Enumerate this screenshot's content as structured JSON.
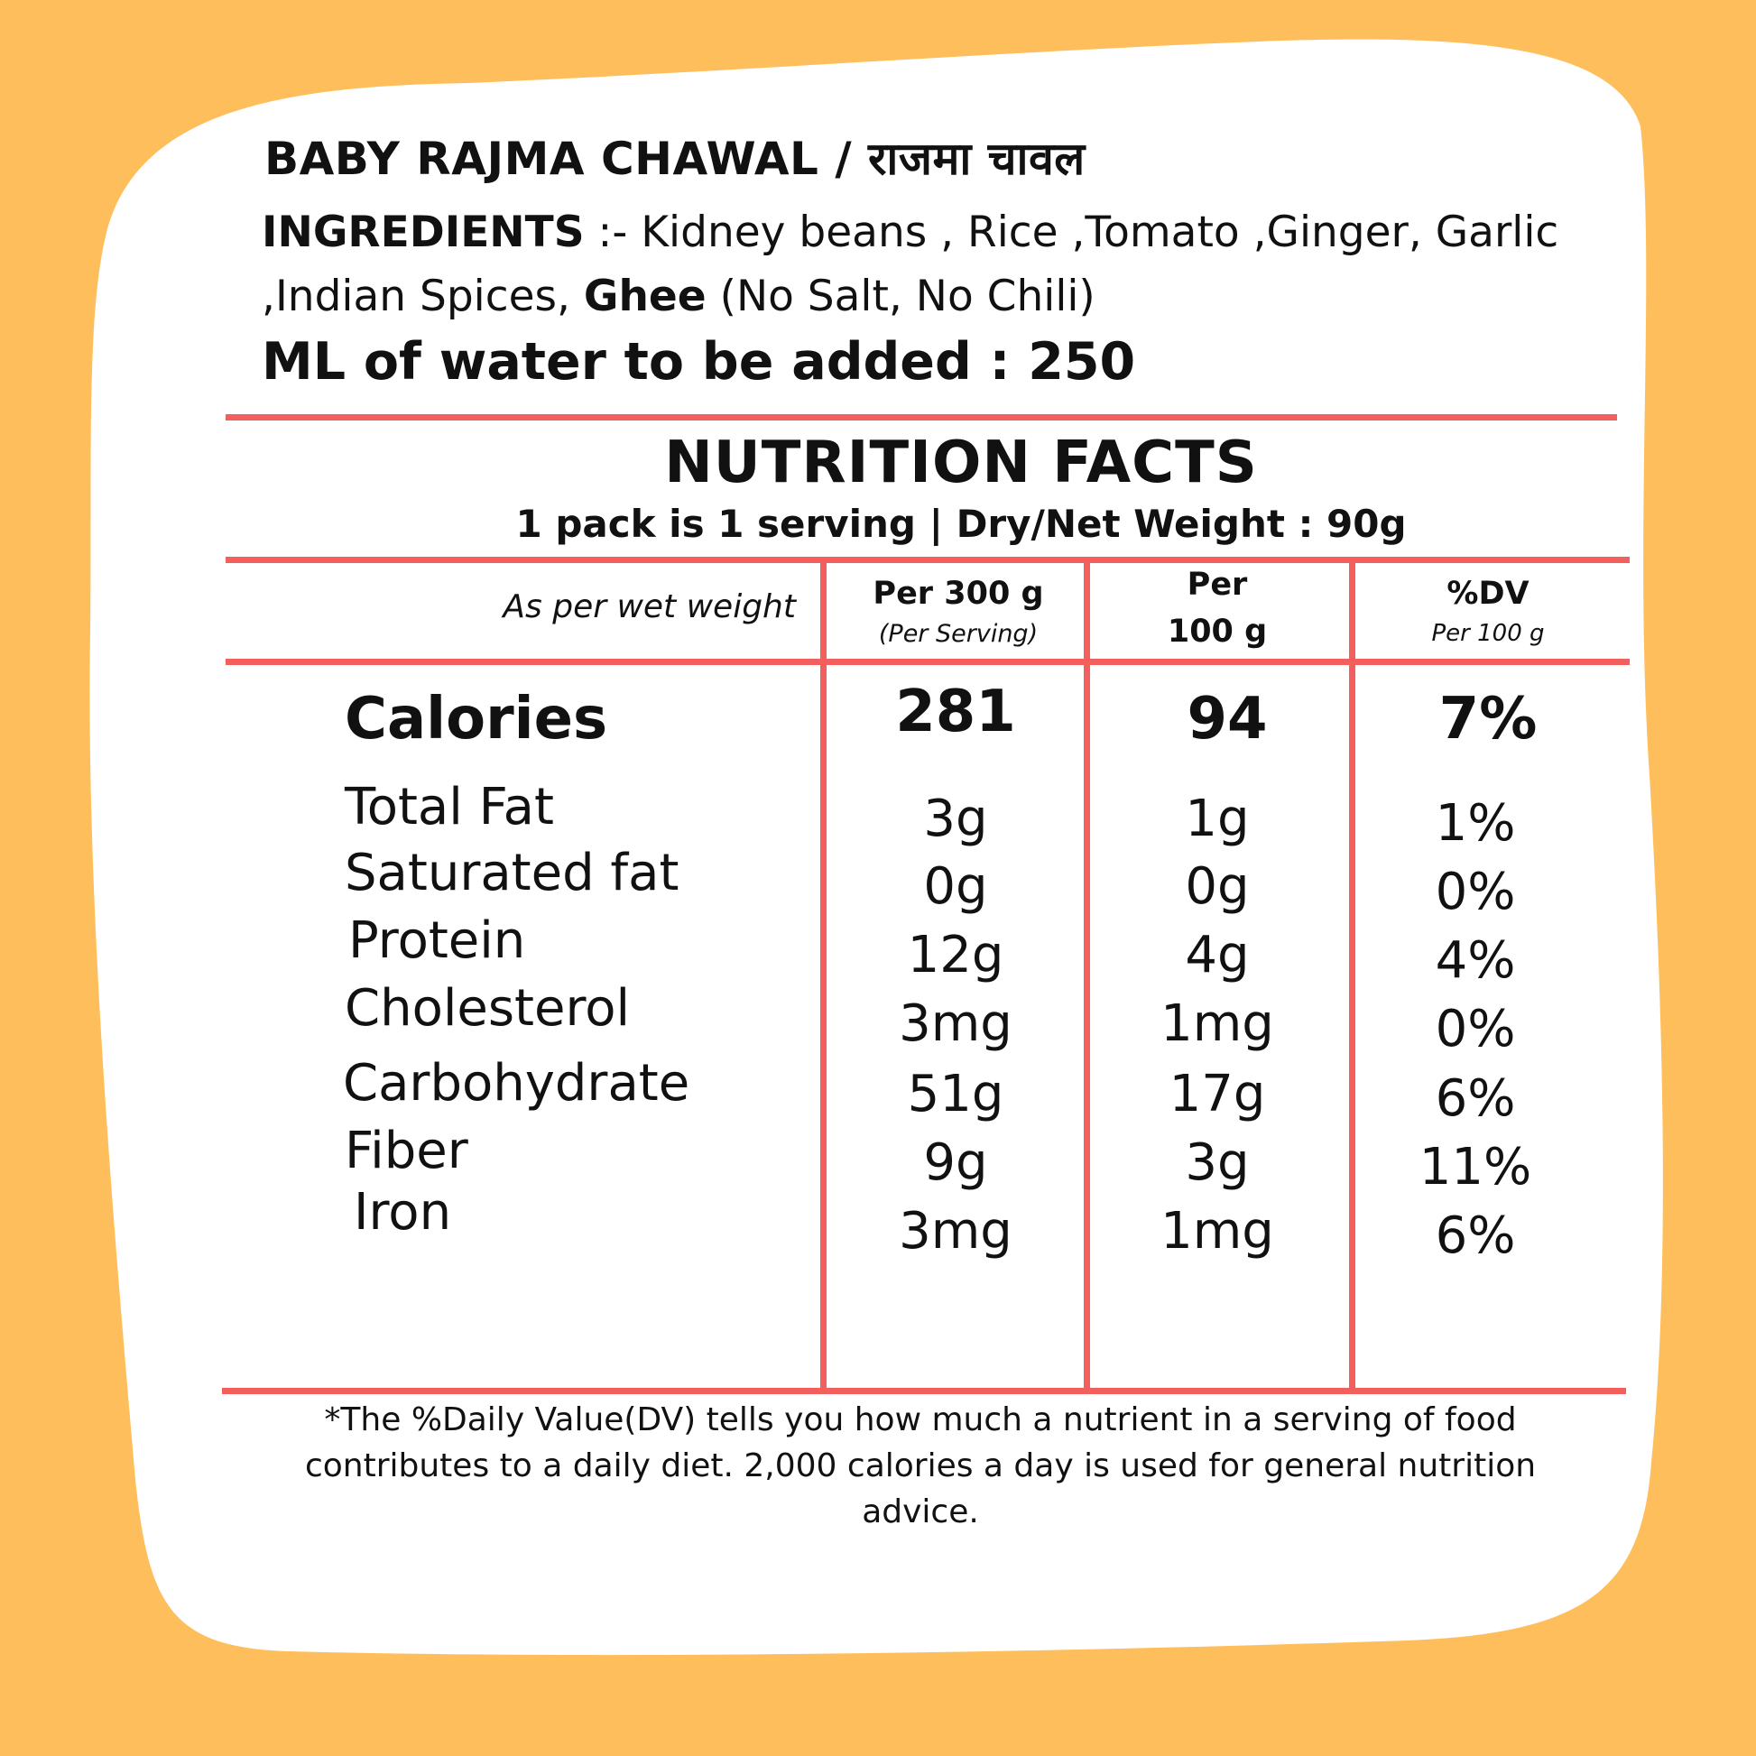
{
  "label": {
    "title": "BABY RAJMA CHAWAL / राजमा चावल",
    "ingredients": {
      "heading": "INGREDIENTS",
      "text_part1": " :- Kidney beans , Rice ,Tomato ,Ginger, Garlic ,Indian Spices, ",
      "bold_item": "Ghee",
      "text_part2": " (No Salt, No Chili)"
    },
    "water": "ML of water to be added : 250",
    "nutrition_title": "NUTRITION FACTS",
    "serving_info": "1 pack is 1 serving | Dry/Net  Weight : 90g"
  },
  "table": {
    "note": "As per wet weight",
    "columns": [
      {
        "line1": "Per 300 g",
        "line2": "(Per Serving)"
      },
      {
        "line1": "Per",
        "line2": "100 g"
      },
      {
        "line1": "%DV",
        "line2": "Per 100 g"
      }
    ],
    "rows": [
      {
        "name": "Calories",
        "per_serving": "281",
        "per_100g": "94",
        "dv": "7%"
      },
      {
        "name": "Total Fat",
        "per_serving": "3g",
        "per_100g": "1g",
        "dv": "1%"
      },
      {
        "name": "Saturated fat",
        "per_serving": "0g",
        "per_100g": "0g",
        "dv": "0%"
      },
      {
        "name": "Protein",
        "per_serving": "12g",
        "per_100g": "4g",
        "dv": "4%"
      },
      {
        "name": "Cholesterol",
        "per_serving": "3mg",
        "per_100g": "1mg",
        "dv": "0%"
      },
      {
        "name": "Carbohydrate",
        "per_serving": "51g",
        "per_100g": "17g",
        "dv": "6%"
      },
      {
        "name": "Fiber",
        "per_serving": "9g",
        "per_100g": "3g",
        "dv": "11%"
      },
      {
        "name": "Iron",
        "per_serving": "3mg",
        "per_100g": "1mg",
        "dv": "6%"
      }
    ]
  },
  "footnote": "*The %Daily Value(DV) tells you how much a nutrient in a serving of food contributes to a daily diet. 2,000 calories a day is used for general nutrition advice.",
  "colors": {
    "background": "#FFBE5C",
    "card": "#FFFFFF",
    "rule": "#F25F5C"
  }
}
